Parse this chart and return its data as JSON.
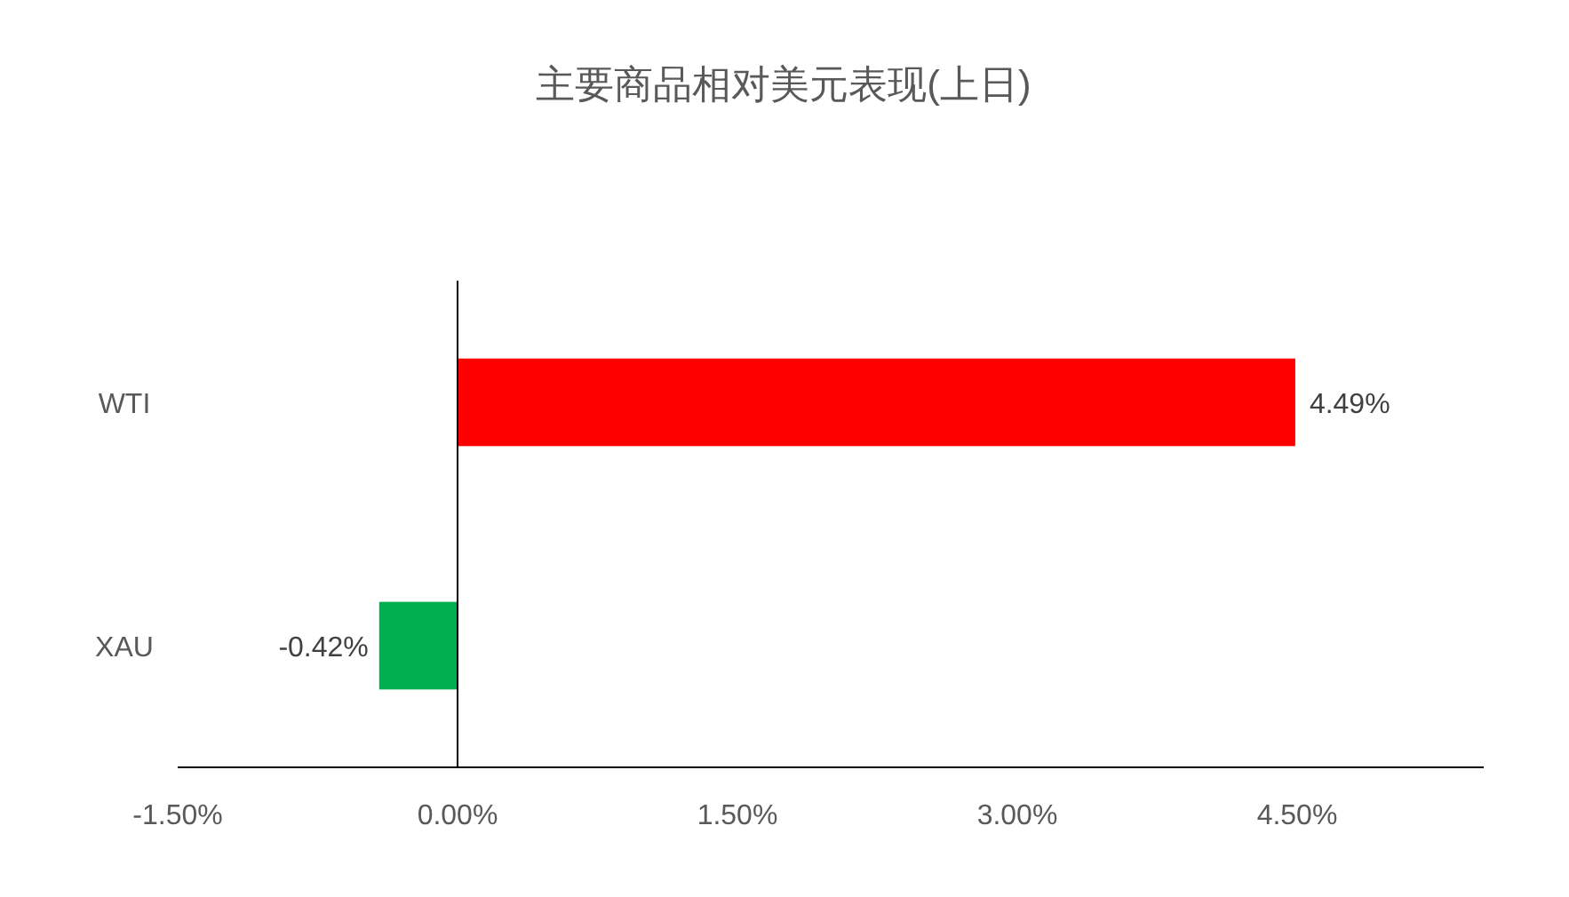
{
  "chart_data": {
    "type": "bar",
    "orientation": "horizontal",
    "title": "主要商品相对美元表现(上日)",
    "categories": [
      "WTI",
      "XAU"
    ],
    "values": [
      4.49,
      -0.42
    ],
    "colors": [
      "#ff0000",
      "#00b050"
    ],
    "value_labels": [
      "4.49%",
      "-0.42%"
    ],
    "xlim": [
      -1.5,
      5.5
    ],
    "xticks": [
      {
        "value": -1.5,
        "label": "-1.50%"
      },
      {
        "value": 0,
        "label": "0.00%"
      },
      {
        "value": 1.5,
        "label": "1.50%"
      },
      {
        "value": 3,
        "label": "3.00%"
      },
      {
        "value": 4.5,
        "label": "4.50%"
      }
    ]
  }
}
